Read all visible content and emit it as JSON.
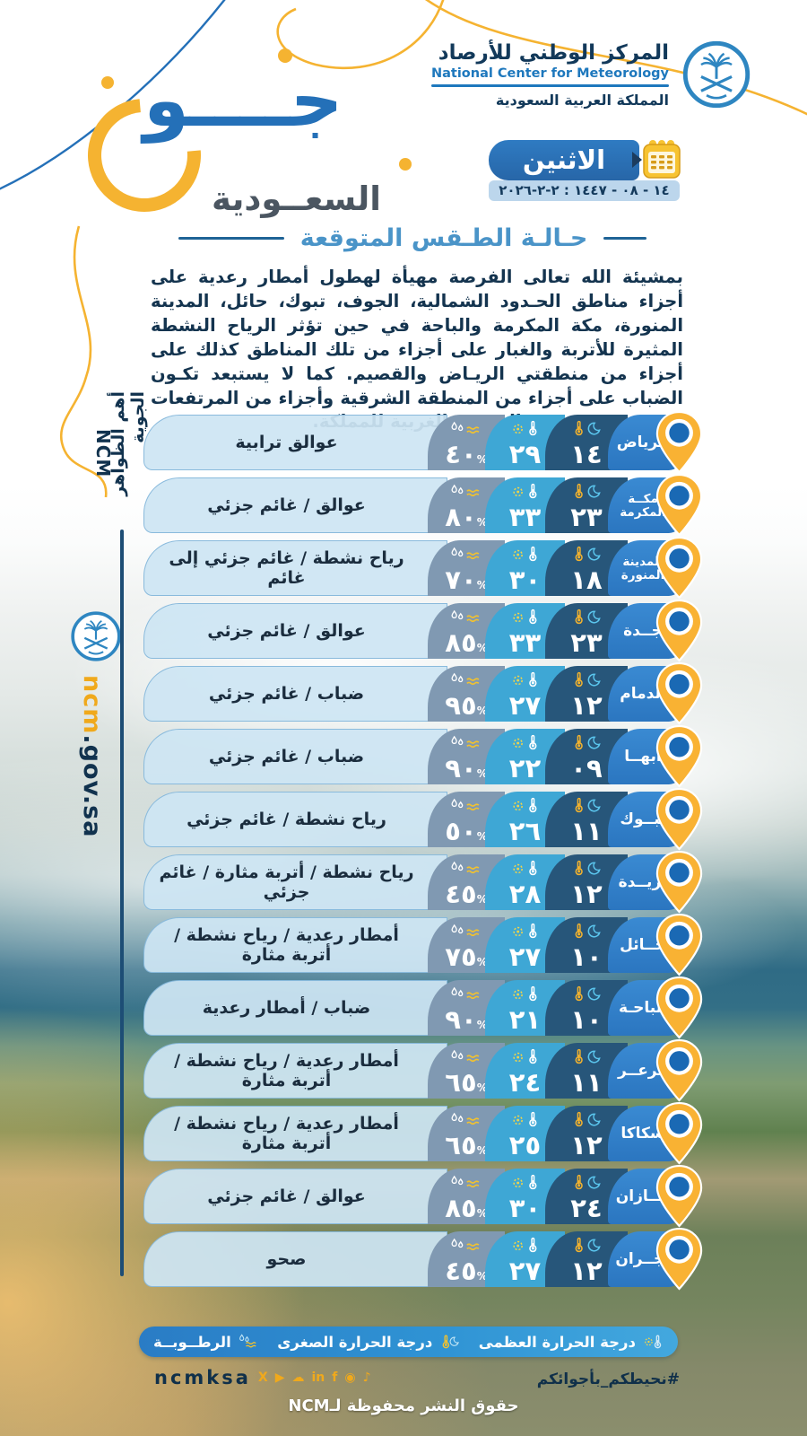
{
  "header": {
    "org_name_ar": "المركز الوطني للأرصاد",
    "org_name_en": "National Center for Meteorology",
    "org_country": "المملكة العربية السعودية",
    "brand_word1": "جــــو",
    "brand_word2": "السعــودية",
    "day_label": "الاثنين",
    "date_line": "١٤ - ٠٨ - ١٤٤٧ : ٢-٢-٢٠٢٦"
  },
  "section": {
    "title": "حـالـة الطـقس المتوقعة",
    "forecast_text": "بمشيئة الله تعالى الفرصة مهيأة لهطول أمطار رعدية على أجزاء مناطق الحـدود الشمالية، الجوف، تبوك، حائل، المدينة المنورة، مكة المكرمة والباحة في حين تؤثر الرياح النشطة المثيرة للأتربة والغبار على أجزاء من تلك المناطق كذلك على أجزاء من منطقتي الريـاض والقصيم. كما لا يستبعد تكـون الضباب على أجزاء من المنطقة الشرقية وأجزاء من المرتفعات الجنوبية الغربية للمملكة."
  },
  "sidebar": {
    "rail_title": "أهم الظواهر الجوية",
    "ncm_label": "NCM",
    "website_brand": "ncm",
    "website_domain": ".gov.sa"
  },
  "rows": [
    {
      "city": "الرياض",
      "city2": null,
      "min": "١٤",
      "max": "٢٩",
      "humidity": "٤٠",
      "condition": "عوالق ترابية"
    },
    {
      "city": "مكــة",
      "city2": "المكرمة",
      "min": "٢٣",
      "max": "٣٣",
      "humidity": "٨٠",
      "condition": "عوالق / غائم جزئي"
    },
    {
      "city": "المدينة",
      "city2": "المنورة",
      "min": "١٨",
      "max": "٣٠",
      "humidity": "٧٠",
      "condition": "رياح نشطة / غائم جزئي إلى غائم"
    },
    {
      "city": "جــدة",
      "city2": null,
      "min": "٢٣",
      "max": "٣٣",
      "humidity": "٨٥",
      "condition": "عوالق / غائم جزئي"
    },
    {
      "city": "الدمام",
      "city2": null,
      "min": "١٢",
      "max": "٢٧",
      "humidity": "٩٥",
      "condition": "ضباب / غائم جزئي"
    },
    {
      "city": "أبهــا",
      "city2": null,
      "min": "٠٩",
      "max": "٢٢",
      "humidity": "٩٠",
      "condition": "ضباب / غائم جزئي"
    },
    {
      "city": "تبــوك",
      "city2": null,
      "min": "١١",
      "max": "٢٦",
      "humidity": "٥٠",
      "condition": "رياح نشطة / غائم جزئي"
    },
    {
      "city": "بريــدة",
      "city2": null,
      "min": "١٢",
      "max": "٢٨",
      "humidity": "٤٥",
      "condition": "رياح نشطة / أتربة مثارة / غائم جزئي"
    },
    {
      "city": "حــائل",
      "city2": null,
      "min": "١٠",
      "max": "٢٧",
      "humidity": "٧٥",
      "condition": "أمطار رعدية / رياح نشطة / أتربة مثارة"
    },
    {
      "city": "الباحـة",
      "city2": null,
      "min": "١٠",
      "max": "٢١",
      "humidity": "٩٠",
      "condition": "ضباب / أمطار رعدية"
    },
    {
      "city": "عرعــر",
      "city2": null,
      "min": "١١",
      "max": "٢٤",
      "humidity": "٦٥",
      "condition": "أمطار رعدية / رياح نشطة / أتربة مثارة"
    },
    {
      "city": "سكاكا",
      "city2": null,
      "min": "١٢",
      "max": "٢٥",
      "humidity": "٦٥",
      "condition": "أمطار رعدية / رياح نشطة / أتربة مثارة"
    },
    {
      "city": "جــازان",
      "city2": null,
      "min": "٢٤",
      "max": "٣٠",
      "humidity": "٨٥",
      "condition": "عوالق / غائم جزئي"
    },
    {
      "city": "نجــران",
      "city2": null,
      "min": "١٢",
      "max": "٢٧",
      "humidity": "٤٥",
      "condition": "صحو"
    }
  ],
  "legend": {
    "max_label": "درجة الحرارة العظمى",
    "min_label": "درجة الحرارة الصغرى",
    "humidity_label": "الرطــوبــة"
  },
  "footer": {
    "hashtag": "#نحيطكم_بأجوائكم",
    "social_handle": "ncmksa",
    "social_icons": [
      "x-icon",
      "youtube-icon",
      "snapchat-icon",
      "linkedin-icon",
      "facebook-icon",
      "instagram-icon",
      "tiktok-icon"
    ],
    "copyright": "حقوق النشر محفوظة لـNCM"
  },
  "misc": {
    "percent": "%"
  },
  "colors": {
    "brand_blue": "#2470b8",
    "brand_yellow": "#f5b331",
    "city_badge": "#2e7dc8",
    "min_cell": "#27567a",
    "max_cell": "#3ea7d5",
    "humidity_cell": "#8099b2",
    "condition_cell": "#cde5f3",
    "dark_navy": "#12395a"
  }
}
